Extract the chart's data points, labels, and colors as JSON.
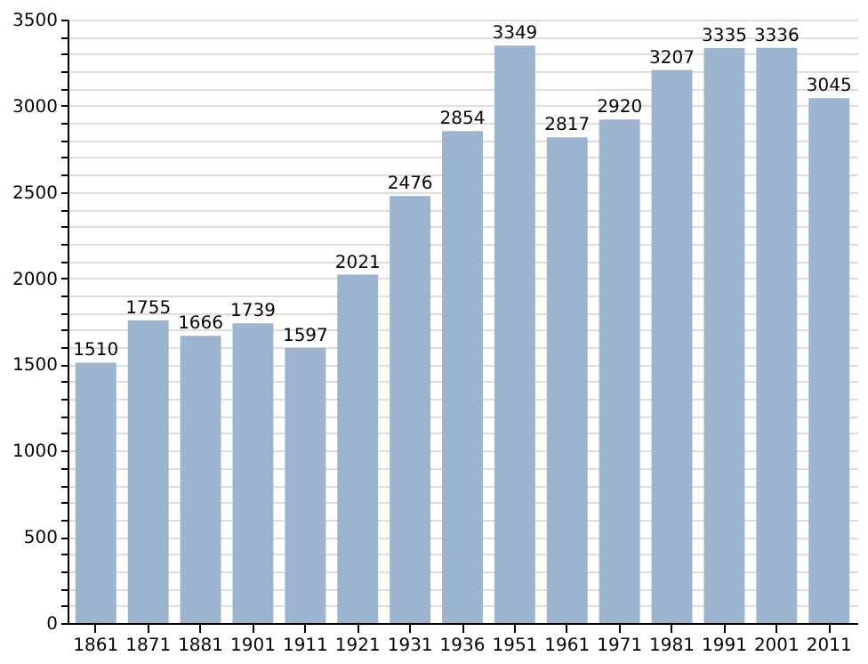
{
  "chart_data": {
    "type": "bar",
    "categories": [
      "1861",
      "1871",
      "1881",
      "1901",
      "1911",
      "1921",
      "1931",
      "1936",
      "1951",
      "1961",
      "1971",
      "1981",
      "1991",
      "2001",
      "2011"
    ],
    "values": [
      1510,
      1755,
      1666,
      1739,
      1597,
      2021,
      2476,
      2854,
      3349,
      2817,
      2920,
      3207,
      3335,
      3336,
      3045
    ],
    "color": "#9db4cf",
    "data_labels": true,
    "grid": "y",
    "ylim": [
      0,
      3500
    ],
    "yticks": [
      0,
      {
        "value": 100,
        "label": null
      },
      {
        "value": 200,
        "label": null
      },
      {
        "value": 300,
        "label": null
      },
      {
        "value": 400,
        "label": null
      },
      500,
      {
        "value": 600,
        "label": null
      },
      {
        "value": 700,
        "label": null
      },
      {
        "value": 800,
        "label": null
      },
      {
        "value": 900,
        "label": null
      },
      1000,
      {
        "value": 1100,
        "label": null
      },
      {
        "value": 1200,
        "label": null
      },
      {
        "value": 1300,
        "label": null
      },
      {
        "value": 1400,
        "label": null
      },
      1500,
      {
        "value": 1600,
        "label": null
      },
      {
        "value": 1700,
        "label": null
      },
      {
        "value": 1800,
        "label": null
      },
      {
        "value": 1900,
        "label": null
      },
      2000,
      {
        "value": 2100,
        "label": null
      },
      {
        "value": 2200,
        "label": null
      },
      {
        "value": 2300,
        "label": null
      },
      {
        "value": 2400,
        "label": null
      },
      2500,
      {
        "value": 2600,
        "label": null
      },
      {
        "value": 2700,
        "label": null
      },
      {
        "value": 2800,
        "label": null
      },
      {
        "value": 2900,
        "label": null
      },
      3000,
      {
        "value": 3100,
        "label": null
      },
      {
        "value": 3200,
        "label": null
      },
      {
        "value": 3300,
        "label": null
      },
      {
        "value": 3400,
        "label": null
      },
      3500
    ]
  }
}
